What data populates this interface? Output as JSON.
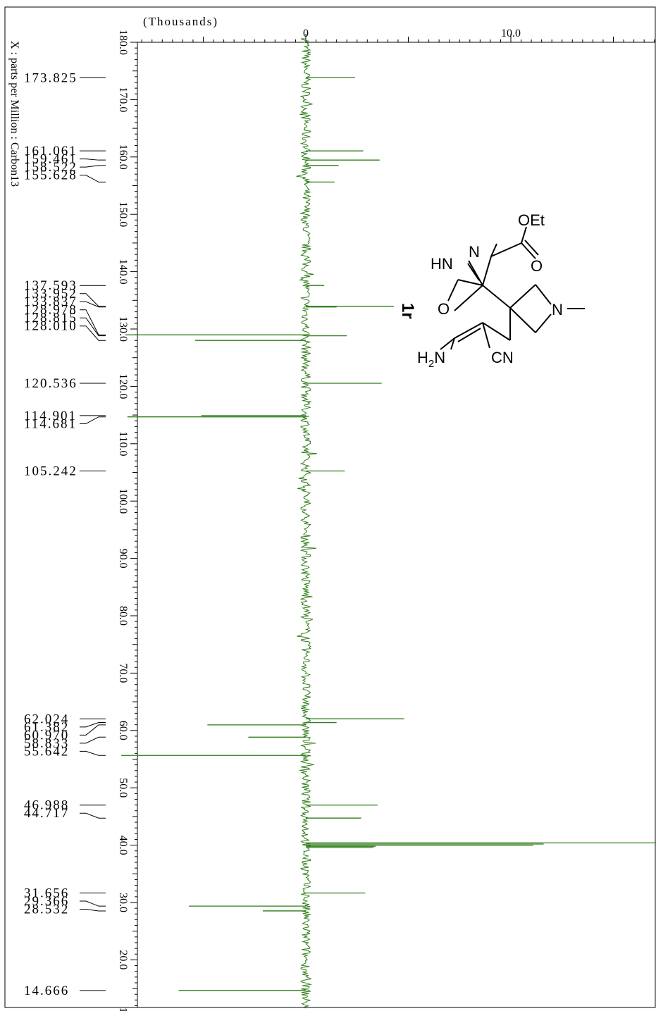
{
  "chart_data": {
    "type": "line",
    "title": "",
    "x_axis_label": "(Thousands)",
    "x_ticks": [
      0,
      10.0
    ],
    "x_tick_labels": [
      "0",
      "10.0"
    ],
    "y_axis_label": "X : parts per Million : Carbon13",
    "y_ticks": [
      180.0,
      170.0,
      160.0,
      150.0,
      140.0,
      130.0,
      120.0,
      110.0,
      100.0,
      90.0,
      80.0,
      70.0,
      60.0,
      50.0,
      40.0,
      30.0,
      20.0,
      10.0
    ],
    "y_tick_labels": [
      "180.0",
      "170.0",
      "160.0",
      "150.0",
      "140.0",
      "130.0",
      "120.0",
      "110.0",
      "100.0",
      "90.0",
      "80.0",
      "70.0",
      "60.0",
      "50.0",
      "40.0",
      "30.0",
      "20.0",
      "10.0"
    ],
    "ylim": [
      10.0,
      181.0
    ],
    "xlim": [
      -8.8,
      19.0
    ],
    "series_color": "#2e7d18",
    "peak_labels": [
      "173.825",
      "161.061",
      "159.461",
      "158.522",
      "155.628",
      "137.593",
      "133.952",
      "133.837",
      "128.978",
      "128.815",
      "128.010",
      "120.536",
      "114.901",
      "114.681",
      "105.242",
      "62.024",
      "61.382",
      "60.970",
      "58.833",
      "55.642",
      "46.988",
      "44.717",
      "31.656",
      "29.366",
      "28.532",
      "14.666"
    ],
    "peaks": [
      {
        "ppm": 173.825,
        "intensity": 2.4
      },
      {
        "ppm": 161.061,
        "intensity": 2.8
      },
      {
        "ppm": 159.461,
        "intensity": 3.6
      },
      {
        "ppm": 158.522,
        "intensity": 1.6
      },
      {
        "ppm": 155.628,
        "intensity": 1.4
      },
      {
        "ppm": 137.593,
        "intensity": 0.9
      },
      {
        "ppm": 133.952,
        "intensity": 4.3
      },
      {
        "ppm": 133.837,
        "intensity": 1.5
      },
      {
        "ppm": 128.978,
        "intensity": -8.8
      },
      {
        "ppm": 128.815,
        "intensity": 2.0
      },
      {
        "ppm": 128.01,
        "intensity": -5.4
      },
      {
        "ppm": 120.536,
        "intensity": 3.7
      },
      {
        "ppm": 114.901,
        "intensity": -5.1
      },
      {
        "ppm": 114.681,
        "intensity": -8.7
      },
      {
        "ppm": 105.242,
        "intensity": 1.9
      },
      {
        "ppm": 62.024,
        "intensity": 4.8
      },
      {
        "ppm": 61.382,
        "intensity": 1.5
      },
      {
        "ppm": 60.97,
        "intensity": -4.8
      },
      {
        "ppm": 58.833,
        "intensity": -2.8
      },
      {
        "ppm": 55.642,
        "intensity": -9.0
      },
      {
        "ppm": 46.988,
        "intensity": 3.5
      },
      {
        "ppm": 44.717,
        "intensity": 2.7
      },
      {
        "ppm": 40.4,
        "intensity": 19.0
      },
      {
        "ppm": 40.2,
        "intensity": 11.6
      },
      {
        "ppm": 40.0,
        "intensity": 11.1
      },
      {
        "ppm": 39.8,
        "intensity": 3.4
      },
      {
        "ppm": 39.6,
        "intensity": 3.3
      },
      {
        "ppm": 31.656,
        "intensity": 2.9
      },
      {
        "ppm": 29.366,
        "intensity": -5.7
      },
      {
        "ppm": 28.532,
        "intensity": -2.1
      },
      {
        "ppm": 14.666,
        "intensity": -6.2
      }
    ]
  },
  "structure": {
    "compound_label": "1r",
    "atoms": [
      "OEt",
      "O",
      "N",
      "HN",
      "N",
      "O",
      "CN"
    ],
    "amine_label_base": "H",
    "amine_label_sub": "2",
    "amine_label_tail": "N"
  }
}
